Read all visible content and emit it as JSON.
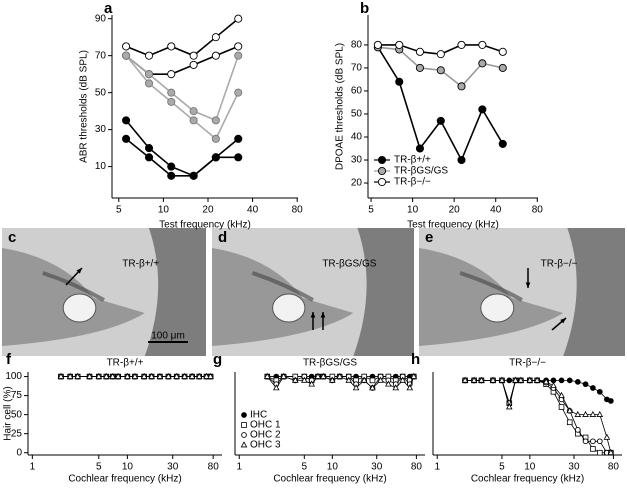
{
  "chart_data": [
    {
      "type": "line",
      "label": "a",
      "xlabel": "Test frequency (kHz)",
      "ylabel": "ABR thresholds (dB SPL)",
      "xlog": true,
      "xlim": [
        4.5,
        81
      ],
      "xticks": [
        5,
        10,
        20,
        40,
        80
      ],
      "ylim": [
        -7,
        92
      ],
      "yticks": [
        10,
        30,
        50,
        70,
        90
      ],
      "x": [
        5.6,
        8,
        11.3,
        16,
        22.6,
        32
      ],
      "series": [
        {
          "color": "#000000",
          "fill": "#ffffff",
          "marker": "circle",
          "values": [
            75,
            70,
            75,
            70,
            80,
            90
          ]
        },
        {
          "color": "#000000",
          "fill": "#ffffff",
          "marker": "circle",
          "values": [
            70,
            60,
            60,
            65,
            70,
            75
          ]
        },
        {
          "color": "#aaaaaa",
          "fill": "#aaaaaa",
          "marker": "circle",
          "values": [
            70,
            60,
            50,
            40,
            35,
            70
          ]
        },
        {
          "color": "#aaaaaa",
          "fill": "#aaaaaa",
          "marker": "circle",
          "values": [
            70,
            55,
            45,
            35,
            25,
            50
          ]
        },
        {
          "color": "#000000",
          "fill": "#000000",
          "marker": "circle",
          "values": [
            35,
            20,
            10,
            5,
            15,
            25
          ]
        },
        {
          "color": "#000000",
          "fill": "#000000",
          "marker": "circle",
          "values": [
            25,
            15,
            5,
            5,
            15,
            15
          ]
        }
      ]
    },
    {
      "type": "line",
      "label": "b",
      "xlabel": "Test frequency (kHz)",
      "ylabel": "DPOAE thresholds (dB SPL)",
      "xlog": true,
      "xlim": [
        4.75,
        81
      ],
      "xticks": [
        5,
        10,
        20,
        40,
        80
      ],
      "ylim": [
        13.5,
        93
      ],
      "yticks": [
        20,
        30,
        40,
        50,
        60,
        70,
        80
      ],
      "x": [
        5.6,
        8,
        11.3,
        16,
        22.6,
        32,
        45
      ],
      "legend": "lower left",
      "series": [
        {
          "name": "TR-β+/+",
          "color": "#000000",
          "fill": "#000000",
          "marker": "circle",
          "values": [
            79,
            64,
            35,
            47,
            30,
            52,
            37
          ]
        },
        {
          "name": "TR-βGS/GS",
          "color": "#999999",
          "fill": "#aaaaaa",
          "marker": "circle",
          "values": [
            79,
            78,
            70,
            69,
            62,
            72,
            70
          ]
        },
        {
          "name": "TR-β−/−",
          "color": "#000000",
          "fill": "#ffffff",
          "marker": "circle",
          "values": [
            80,
            80,
            77,
            76,
            80,
            80,
            77
          ]
        }
      ]
    },
    {
      "type": "line",
      "label": "f",
      "title": "TR-β+/+",
      "xlabel": "Cochlear frequency (kHz)",
      "ylabel": "Hair cell (%)",
      "xlog": true,
      "xlim": [
        0.9,
        99
      ],
      "xticks": [
        1,
        5,
        10,
        30,
        80
      ],
      "ylim": [
        -3,
        106
      ],
      "yticks": [
        0,
        25,
        50,
        75,
        100
      ],
      "x": [
        2,
        2.5,
        3,
        4,
        5,
        6,
        7,
        8,
        10,
        12,
        15,
        18,
        22,
        27,
        33,
        40,
        48,
        57,
        68,
        75
      ],
      "series": [
        {
          "color": "#000000",
          "fill": "#000000",
          "marker": "circle",
          "values": [
            100,
            100,
            100,
            100,
            100,
            100,
            100,
            100,
            100,
            100,
            100,
            100,
            100,
            100,
            100,
            100,
            100,
            100,
            100,
            100
          ]
        },
        {
          "color": "#000000",
          "fill": "#ffffff",
          "marker": "square",
          "values": [
            100,
            100,
            100,
            100,
            100,
            100,
            100,
            100,
            100,
            100,
            100,
            100,
            100,
            100,
            100,
            100,
            100,
            100,
            100,
            100
          ]
        },
        {
          "color": "#000000",
          "fill": "#ffffff",
          "marker": "circle",
          "values": [
            100,
            100,
            100,
            100,
            100,
            100,
            100,
            100,
            100,
            100,
            100,
            100,
            100,
            100,
            100,
            100,
            100,
            100,
            100,
            100
          ]
        },
        {
          "color": "#000000",
          "fill": "#ffffff",
          "marker": "triangle",
          "values": [
            100,
            100,
            100,
            100,
            100,
            100,
            100,
            100,
            100,
            100,
            100,
            100,
            100,
            100,
            100,
            100,
            100,
            100,
            100,
            100
          ]
        }
      ]
    },
    {
      "type": "line",
      "label": "g",
      "title": "TR-βGS/GS",
      "xlabel": "Cochlear frequency (kHz)",
      "xlog": true,
      "xlim": [
        0.9,
        99
      ],
      "xticks": [
        1,
        5,
        10,
        30,
        80
      ],
      "ylim": [
        -3,
        106
      ],
      "legend": "lower left",
      "x": [
        2,
        2.5,
        3,
        4,
        5,
        6,
        7,
        8,
        10,
        12,
        15,
        18,
        22,
        27,
        33,
        40,
        48,
        57,
        68,
        75
      ],
      "series": [
        {
          "name": "IHC",
          "color": "#000000",
          "fill": "#000000",
          "marker": "circle",
          "values": [
            100,
            100,
            100,
            100,
            100,
            100,
            100,
            100,
            100,
            100,
            100,
            100,
            100,
            100,
            100,
            100,
            100,
            100,
            100,
            100
          ]
        },
        {
          "name": "OHC 1",
          "color": "#000000",
          "fill": "#ffffff",
          "marker": "square",
          "values": [
            100,
            95,
            100,
            100,
            100,
            95,
            100,
            100,
            100,
            100,
            100,
            95,
            100,
            95,
            100,
            100,
            95,
            100,
            95,
            100
          ]
        },
        {
          "name": "OHC 2",
          "color": "#000000",
          "fill": "#ffffff",
          "marker": "circle",
          "values": [
            100,
            90,
            100,
            95,
            100,
            95,
            100,
            100,
            95,
            100,
            100,
            90,
            95,
            85,
            100,
            95,
            90,
            100,
            90,
            100
          ]
        },
        {
          "name": "OHC 3",
          "color": "#000000",
          "fill": "#ffffff",
          "marker": "triangle",
          "values": [
            100,
            85,
            100,
            95,
            95,
            90,
            100,
            100,
            95,
            100,
            95,
            85,
            95,
            85,
            95,
            90,
            85,
            95,
            85,
            100
          ]
        }
      ]
    },
    {
      "type": "line",
      "label": "h",
      "title": "TR-β−/−",
      "xlabel": "Cochlear frequency (kHz)",
      "xlog": true,
      "xlim": [
        0.9,
        99
      ],
      "xticks": [
        1,
        5,
        10,
        30,
        80
      ],
      "ylim": [
        -3,
        106
      ],
      "x": [
        2,
        2.5,
        3,
        4,
        5,
        6,
        7,
        8,
        10,
        12,
        15,
        18,
        22,
        27,
        33,
        40,
        48,
        57,
        68,
        75
      ],
      "series": [
        {
          "color": "#000000",
          "fill": "#000000",
          "marker": "circle",
          "values": [
            95,
            95,
            95,
            95,
            95,
            95,
            95,
            95,
            95,
            95,
            95,
            95,
            95,
            95,
            93,
            90,
            85,
            80,
            70,
            68
          ]
        },
        {
          "color": "#000000",
          "fill": "#ffffff",
          "marker": "square",
          "values": [
            95,
            95,
            95,
            95,
            95,
            65,
            95,
            95,
            95,
            95,
            90,
            80,
            60,
            40,
            25,
            20,
            5,
            0,
            0,
            0
          ]
        },
        {
          "color": "#000000",
          "fill": "#ffffff",
          "marker": "circle",
          "values": [
            95,
            95,
            95,
            95,
            95,
            65,
            95,
            95,
            95,
            95,
            92,
            85,
            70,
            55,
            30,
            15,
            15,
            15,
            0,
            0
          ]
        },
        {
          "color": "#000000",
          "fill": "#ffffff",
          "marker": "triangle",
          "values": [
            95,
            95,
            95,
            95,
            95,
            60,
            95,
            95,
            95,
            95,
            93,
            88,
            75,
            55,
            50,
            50,
            50,
            50,
            20,
            0
          ]
        }
      ]
    }
  ],
  "panels": [
    {
      "label": "c",
      "title": "TR-β+/+",
      "scale": "100 μm"
    },
    {
      "label": "d",
      "title": "TR-βGS/GS"
    },
    {
      "label": "e",
      "title": "TR-β−/−"
    }
  ]
}
